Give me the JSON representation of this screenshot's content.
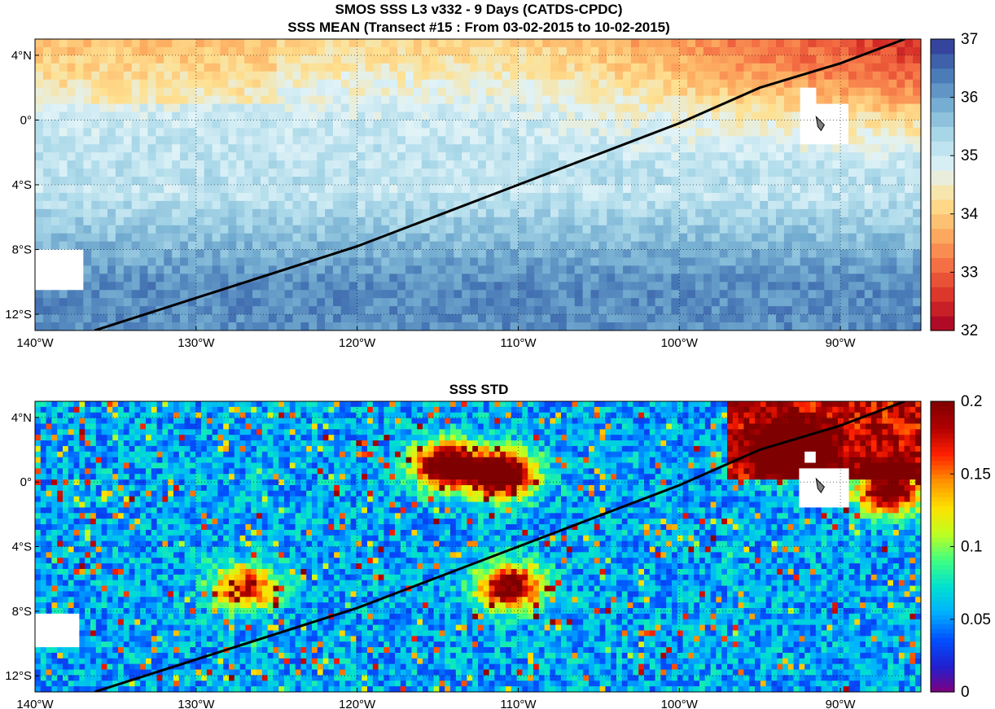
{
  "figure": {
    "title_line1": "SMOS SSS L3 v332 - 9 Days (CATDS-CPDC)",
    "title_line2": "SSS MEAN (Transect #15 : From 03-02-2015 to 10-02-2015)",
    "title_panel2": "SSS STD"
  },
  "chart_data": [
    {
      "type": "heatmap",
      "title": "SSS MEAN (Transect #15 : From 03-02-2015 to 10-02-2015)",
      "xlim": [
        -140,
        -85
      ],
      "ylim": [
        -13,
        5
      ],
      "xticks": [
        -140,
        -130,
        -120,
        -110,
        -100,
        -90
      ],
      "xticklabels": [
        "140°W",
        "130°W",
        "120°W",
        "110°W",
        "100°W",
        "90°W"
      ],
      "yticks": [
        4,
        0,
        -4,
        -8,
        -12
      ],
      "yticklabels": [
        "4°N",
        "0°",
        "4°S",
        "8°S",
        "12°S"
      ],
      "grid": "dotted",
      "colorbar": {
        "range": [
          32,
          37
        ],
        "ticks": [
          32,
          33,
          34,
          35,
          36,
          37
        ],
        "ticklabels": [
          "32",
          "33",
          "34",
          "35",
          "36",
          "37"
        ],
        "colormap": "red-yellow-blue (reversed)"
      },
      "field_description": {
        "northeast_fresh_pool": {
          "lon": [
            -100,
            -85
          ],
          "lat": [
            0,
            5
          ],
          "value": 32.5
        },
        "equatorial_band": {
          "lat": [
            -3,
            4
          ],
          "value": 34.5
        },
        "south_salty_band": {
          "lat": [
            -13,
            -6
          ],
          "value": 36.0
        }
      },
      "transect": {
        "color": "#000000",
        "points": [
          {
            "lon": -136.3,
            "lat": -13.0
          },
          {
            "lon": -120.0,
            "lat": -7.8
          },
          {
            "lon": -100.0,
            "lat": -0.2
          },
          {
            "lon": -95.0,
            "lat": 2.0
          },
          {
            "lon": -90.0,
            "lat": 3.5
          },
          {
            "lon": -86.0,
            "lat": 5.0
          }
        ]
      },
      "land_and_gaps": [
        "Galapagos Islands (~-91°, -0.5°)",
        "Marquesas Islands (~-140°, -9°)"
      ]
    },
    {
      "type": "heatmap",
      "title": "SSS STD",
      "xlim": [
        -140,
        -85
      ],
      "ylim": [
        -13,
        5
      ],
      "xticks": [
        -140,
        -130,
        -120,
        -110,
        -100,
        -90
      ],
      "xticklabels": [
        "140°W",
        "130°W",
        "120°W",
        "110°W",
        "100°W",
        "90°W"
      ],
      "yticks": [
        4,
        0,
        -4,
        -8,
        -12
      ],
      "yticklabels": [
        "4°N",
        "0°",
        "4°S",
        "8°S",
        "12°S"
      ],
      "grid": "dotted",
      "colorbar": {
        "range": [
          0,
          0.2
        ],
        "ticks": [
          0,
          0.05,
          0.1,
          0.15,
          0.2
        ],
        "ticklabels": [
          "0",
          "0.05",
          "0.1",
          "0.15",
          "0.2"
        ],
        "colormap": "jet"
      },
      "hotspots": [
        {
          "lon": -111,
          "lat": 0.5,
          "value": 0.2
        },
        {
          "lon": -114.5,
          "lat": 1,
          "value": 0.18
        },
        {
          "lon": -93,
          "lat": 2,
          "value": 0.2
        },
        {
          "lon": -87,
          "lat": -0.5,
          "value": 0.18
        },
        {
          "lon": -110.5,
          "lat": -6.5,
          "value": 0.16
        },
        {
          "lon": -127,
          "lat": -6.5,
          "value": 0.12
        }
      ],
      "transect": {
        "color": "#000000",
        "points": [
          {
            "lon": -136.3,
            "lat": -13.0
          },
          {
            "lon": -120.0,
            "lat": -7.8
          },
          {
            "lon": -100.0,
            "lat": -0.2
          },
          {
            "lon": -95.0,
            "lat": 2.0
          },
          {
            "lon": -90.0,
            "lat": 3.5
          },
          {
            "lon": -86.0,
            "lat": 5.0
          }
        ]
      },
      "land_and_gaps": [
        "Galapagos Islands (~-91°, -0.5°)",
        "Marquesas Islands (~-140°, -9°)"
      ]
    }
  ]
}
